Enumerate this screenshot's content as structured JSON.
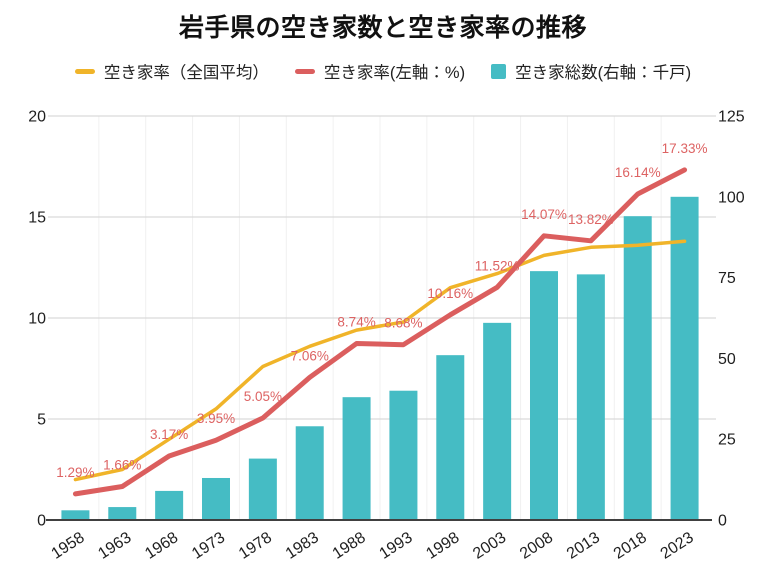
{
  "title": "岩手県の空き家数と空き家率の推移",
  "legend": [
    {
      "label": "空き家率（全国平均）",
      "color": "#F0B429",
      "marker": "dash"
    },
    {
      "label": "空き家率(左軸：%)",
      "color": "#DB5E5E",
      "marker": "dash"
    },
    {
      "label": "空き家総数(右軸：千戸)",
      "color": "#45BCC4",
      "marker": "square"
    }
  ],
  "chart_data": {
    "type": "bar",
    "subtype": "bar+line dual-axis combo",
    "title": "岩手県の空き家数と空き家率の推移",
    "categories": [
      "1958",
      "1963",
      "1968",
      "1973",
      "1978",
      "1983",
      "1988",
      "1993",
      "1998",
      "2003",
      "2008",
      "2013",
      "2018",
      "2023"
    ],
    "series": [
      {
        "name": "空き家率（全国平均）",
        "type": "line",
        "axis": "left",
        "color": "#F0B429",
        "values": [
          2.0,
          2.5,
          4.0,
          5.5,
          7.6,
          8.6,
          9.4,
          9.8,
          11.5,
          12.2,
          13.1,
          13.5,
          13.6,
          13.8
        ]
      },
      {
        "name": "空き家率(左軸：%)",
        "type": "line",
        "axis": "left",
        "color": "#DB5E5E",
        "values": [
          1.29,
          1.66,
          3.17,
          3.95,
          5.05,
          7.06,
          8.74,
          8.68,
          10.16,
          11.52,
          14.07,
          13.82,
          16.14,
          17.33
        ],
        "point_labels": [
          "1.29%",
          "1.66%",
          "3.17%",
          "3.95%",
          "5.05%",
          "7.06%",
          "8.74%",
          "8.68%",
          "10.16%",
          "11.52%",
          "14.07%",
          "13.82%",
          "16.14%",
          "17.33%"
        ],
        "label_color": "#DD6363"
      },
      {
        "name": "空き家総数(右軸：千戸)",
        "type": "bar",
        "axis": "right",
        "color": "#45BCC4",
        "values": [
          3,
          4,
          9,
          13,
          19,
          29,
          38,
          40,
          51,
          61,
          77,
          76,
          94,
          100
        ]
      }
    ],
    "left_axis": {
      "ticks": [
        "0",
        "5",
        "10",
        "15",
        "20"
      ],
      "range": [
        0,
        20
      ],
      "unit": "%"
    },
    "right_axis": {
      "ticks": [
        "0",
        "25",
        "50",
        "75",
        "100",
        "125"
      ],
      "range": [
        0,
        125
      ],
      "unit": "千戸"
    },
    "grid": "horizontal-light",
    "legend_position": "top",
    "tick_label_color": "#1f1f1f"
  }
}
